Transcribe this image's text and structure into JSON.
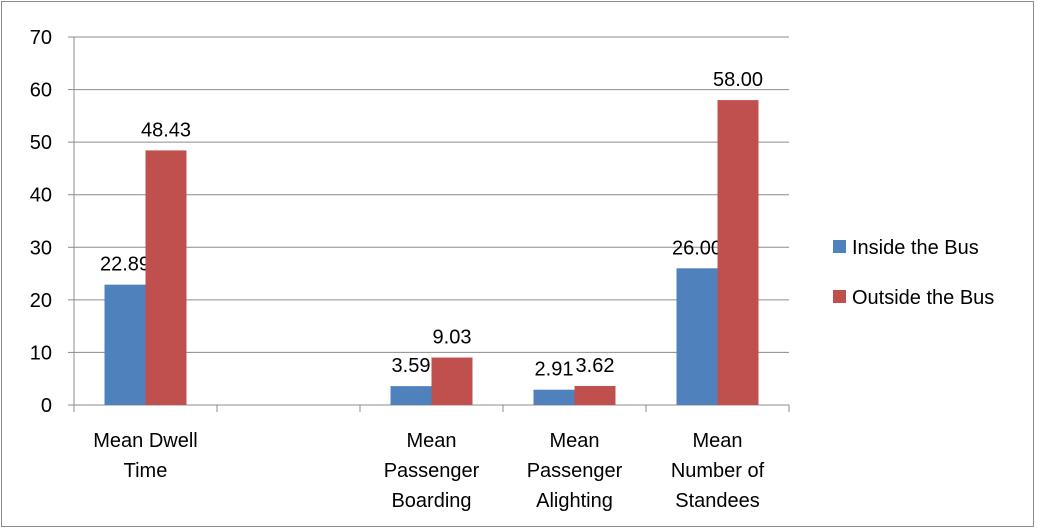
{
  "chart_data": {
    "type": "bar",
    "title": "",
    "xlabel": "",
    "ylabel": "",
    "ylim": [
      0,
      70
    ],
    "yticks": [
      0,
      10,
      20,
      30,
      40,
      50,
      60,
      70
    ],
    "grid": true,
    "legend_position": "right",
    "categories": [
      [
        "Mean Dwell",
        "Time"
      ],
      [],
      [
        "Mean",
        "Passenger",
        "Boarding"
      ],
      [
        "Mean",
        "Passenger",
        "Alighting"
      ],
      [
        "Mean",
        "Number of",
        "Standees"
      ]
    ],
    "series": [
      {
        "name": "Inside the Bus",
        "color": "#4f81bd",
        "values": [
          22.89,
          null,
          3.59,
          2.91,
          26.0
        ],
        "labels": [
          "22.89",
          "",
          "3.59",
          "2.91",
          "26.00"
        ]
      },
      {
        "name": "Outside the Bus",
        "color": "#c0504d",
        "values": [
          48.43,
          null,
          9.03,
          3.62,
          58.0
        ],
        "labels": [
          "48.43",
          "",
          "9.03",
          "3.62",
          "58.00"
        ]
      }
    ]
  }
}
